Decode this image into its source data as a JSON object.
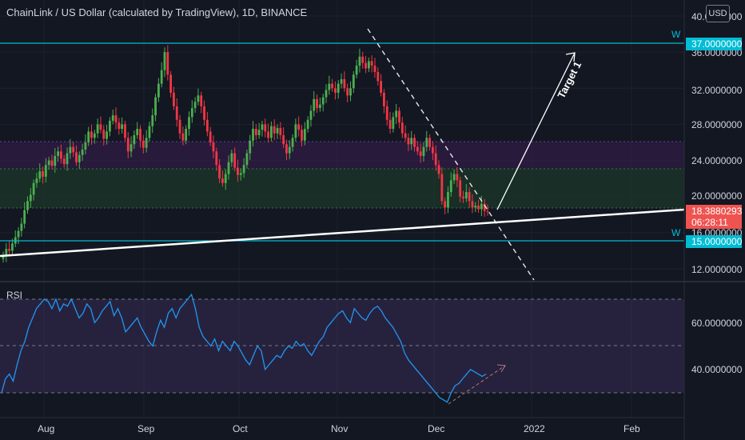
{
  "header": {
    "title": "ChainLink / US Dollar (calculated by TradingView), 1D, BINANCE",
    "currency": "USD"
  },
  "colors": {
    "background": "#131722",
    "up": "#26a69a",
    "down": "#ef5350",
    "candle_up": "#4caf50",
    "candle_down": "#f23645",
    "cyan_line": "#00bcd4",
    "rsi_line": "#2196f3",
    "rsi_band": "#7e57c2",
    "demand_zone": "#1b5e20",
    "supply_zone": "#4a148c"
  },
  "chart_data": [
    {
      "type": "candlestick",
      "title": "ChainLink / US Dollar (calculated by TradingView), 1D, BINANCE",
      "ylim": [
        10.3,
        40.0
      ],
      "y_ticks": [
        "40.0000000",
        "36.0000000",
        "32.0000000",
        "28.0000000",
        "24.0000000",
        "20.0000000",
        "16.0000000",
        "12.0000000"
      ],
      "x_ticks": [
        "Aug",
        "Sep",
        "Oct",
        "Nov",
        "Dec",
        "2022",
        "Feb"
      ],
      "price_label": "18.3880293",
      "countdown": "06:28:11",
      "levels": [
        {
          "label": "37.0000000",
          "value": 37.0,
          "tag": "W"
        },
        {
          "label": "15.0000000",
          "value": 15.0,
          "tag": "W"
        }
      ],
      "zones": [
        {
          "name": "supply",
          "from": 23.0,
          "to": 26.0
        },
        {
          "name": "demand",
          "from": 19.0,
          "to": 23.0
        }
      ],
      "annotation": "Target 1",
      "candles_close": [
        13.5,
        14.2,
        14.0,
        14.8,
        15.5,
        16.2,
        17.0,
        18.5,
        19.5,
        20.2,
        21.5,
        22.0,
        22.8,
        22.2,
        23.5,
        24.0,
        23.4,
        24.5,
        25.0,
        24.2,
        23.6,
        24.8,
        25.5,
        24.9,
        23.8,
        24.6,
        25.2,
        26.0,
        27.2,
        26.5,
        27.0,
        28.0,
        27.4,
        26.4,
        27.2,
        28.4,
        29.0,
        28.2,
        27.5,
        28.0,
        26.5,
        25.0,
        25.8,
        26.8,
        27.5,
        26.2,
        25.4,
        26.5,
        27.8,
        29.0,
        31.0,
        32.5,
        34.0,
        36.0,
        33.5,
        31.5,
        30.0,
        28.5,
        27.0,
        26.2,
        27.5,
        28.8,
        29.8,
        30.5,
        31.2,
        30.0,
        28.5,
        27.2,
        26.0,
        25.0,
        23.5,
        22.0,
        21.5,
        22.5,
        23.8,
        24.8,
        23.2,
        22.4,
        22.6,
        23.5,
        24.8,
        26.2,
        27.5,
        26.8,
        27.4,
        28.0,
        27.2,
        26.5,
        27.8,
        27.0,
        27.6,
        26.8,
        25.8,
        24.8,
        25.5,
        26.5,
        28.0,
        27.4,
        26.2,
        27.5,
        28.5,
        29.5,
        30.8,
        29.8,
        30.2,
        31.0,
        31.8,
        32.5,
        32.0,
        31.5,
        32.5,
        33.0,
        32.0,
        31.2,
        32.0,
        33.5,
        34.5,
        35.5,
        34.8,
        34.2,
        35.0,
        34.5,
        33.8,
        32.8,
        31.5,
        30.0,
        28.5,
        27.5,
        28.8,
        29.5,
        28.2,
        27.0,
        26.5,
        25.8,
        26.5,
        25.5,
        25.0,
        24.5,
        25.5,
        26.5,
        25.5,
        24.8,
        23.5,
        22.5,
        19.5,
        18.8,
        20.5,
        21.8,
        22.5,
        21.8,
        20.0,
        19.8,
        20.5,
        19.5,
        18.8,
        19.0,
        18.6,
        19.2,
        18.4,
        18.39
      ],
      "candles_up_color": "#4caf50",
      "candles_down_color": "#f23645"
    },
    {
      "type": "line",
      "title": "RSI",
      "ylim": [
        20,
        75
      ],
      "y_ticks": [
        "60.0000000",
        "40.0000000"
      ],
      "levels": [
        70,
        50,
        30
      ],
      "series": [
        {
          "name": "RSI",
          "values": [
            30,
            36,
            38,
            35,
            42,
            48,
            52,
            58,
            62,
            66,
            68,
            70,
            69,
            66,
            70,
            65,
            68,
            67,
            70,
            66,
            62,
            64,
            68,
            66,
            60,
            62,
            65,
            67,
            69,
            63,
            66,
            62,
            56,
            58,
            60,
            62,
            58,
            55,
            52,
            50,
            56,
            61,
            58,
            64,
            66,
            62,
            66,
            68,
            70,
            72,
            66,
            58,
            54,
            52,
            50,
            53,
            48,
            52,
            50,
            48,
            52,
            50,
            47,
            44,
            42,
            46,
            50,
            48,
            40,
            42,
            44,
            46,
            45,
            48,
            50,
            49,
            52,
            50,
            51,
            48,
            46,
            49,
            52,
            54,
            58,
            60,
            62,
            64,
            65,
            62,
            60,
            66,
            64,
            62,
            61,
            64,
            66,
            67,
            65,
            62,
            60,
            58,
            55,
            52,
            47,
            44,
            42,
            40,
            38,
            36,
            34,
            32,
            30,
            28,
            27,
            26,
            30,
            33,
            34,
            36,
            38,
            40,
            39,
            38,
            37,
            38
          ]
        }
      ],
      "trend_annotation": "rising"
    }
  ]
}
